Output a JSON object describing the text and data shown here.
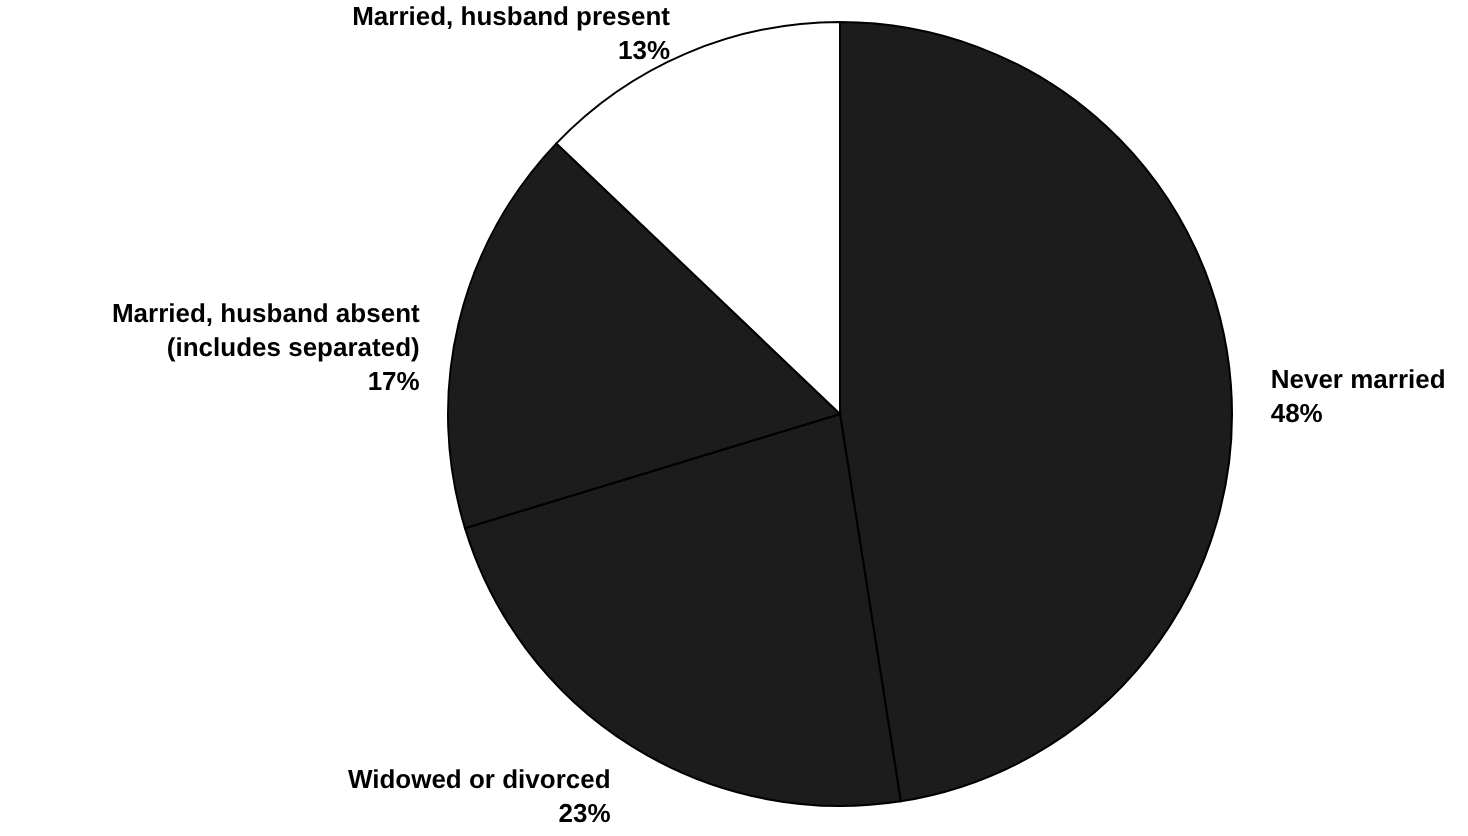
{
  "chart_data": {
    "type": "pie",
    "categories": [
      "Never married",
      "Widowed or divorced",
      "Married, husband absent (includes separated)",
      "Married, husband present"
    ],
    "values": [
      48,
      23,
      17,
      13
    ],
    "value_labels": [
      "48%",
      "23%",
      "17%",
      "13%"
    ],
    "colors": [
      "#1c1c1c",
      "#1c1c1c",
      "#1c1c1c",
      "#ffffff"
    ]
  }
}
